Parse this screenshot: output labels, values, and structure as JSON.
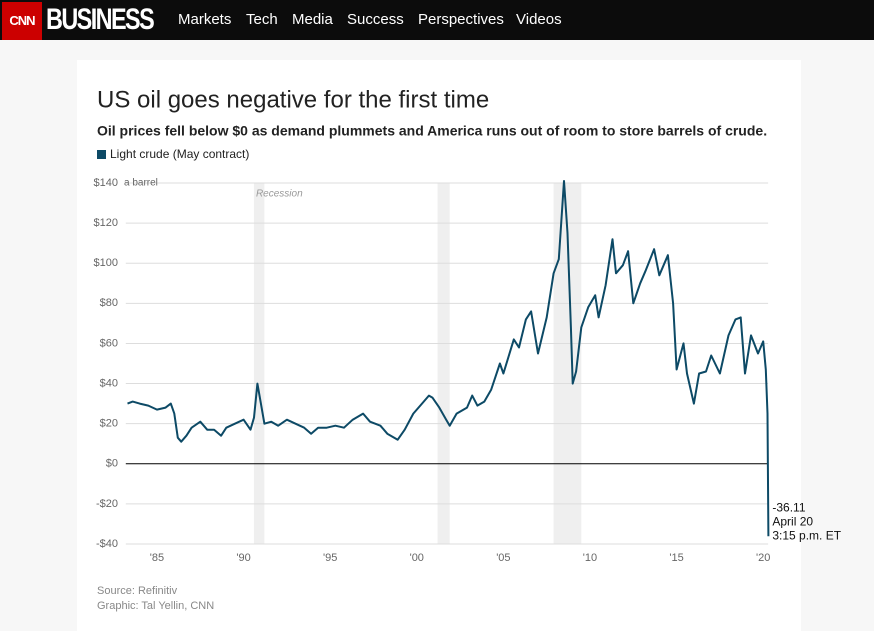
{
  "nav": {
    "logo": "CNN",
    "brand": "BUSINESS",
    "items": [
      "Markets",
      "Tech",
      "Media",
      "Success",
      "Perspectives",
      "Videos"
    ]
  },
  "chart_data": {
    "type": "line",
    "title": "US oil goes negative for the first time",
    "subtitle": "Oil prices fell below $0 as demand plummets and America runs out of room to store barrels of crude.",
    "y_unit_note": "a barrel",
    "recession_label": "Recession",
    "recessions": [
      [
        1990.6,
        1991.2
      ],
      [
        2001.2,
        2001.9
      ],
      [
        2007.9,
        2009.5
      ]
    ],
    "x": [
      1983.3,
      1983.6,
      1984.0,
      1984.5,
      1985.0,
      1985.5,
      1985.8,
      1986.0,
      1986.2,
      1986.4,
      1986.7,
      1987.0,
      1987.5,
      1987.9,
      1988.3,
      1988.7,
      1989.0,
      1989.5,
      1990.0,
      1990.4,
      1990.6,
      1990.8,
      1991.0,
      1991.2,
      1991.6,
      1992.0,
      1992.5,
      1993.0,
      1993.5,
      1993.9,
      1994.3,
      1994.8,
      1995.3,
      1995.8,
      1996.3,
      1996.9,
      1997.3,
      1997.9,
      1998.3,
      1998.9,
      1999.3,
      1999.8,
      2000.3,
      2000.7,
      2000.9,
      2001.3,
      2001.7,
      2001.9,
      2002.3,
      2002.9,
      2003.2,
      2003.5,
      2003.9,
      2004.3,
      2004.8,
      2005.0,
      2005.6,
      2005.9,
      2006.3,
      2006.6,
      2007.0,
      2007.5,
      2007.9,
      2008.2,
      2008.5,
      2008.7,
      2008.9,
      2009.0,
      2009.2,
      2009.5,
      2009.9,
      2010.3,
      2010.5,
      2010.9,
      2011.3,
      2011.5,
      2011.9,
      2012.2,
      2012.5,
      2012.9,
      2013.2,
      2013.7,
      2014.0,
      2014.5,
      2014.8,
      2015.0,
      2015.4,
      2015.6,
      2016.0,
      2016.3,
      2016.7,
      2017.0,
      2017.5,
      2018.0,
      2018.4,
      2018.7,
      2018.95,
      2019.3,
      2019.7,
      2020.0,
      2020.15,
      2020.25,
      2020.3
    ],
    "series": [
      {
        "name": "Light crude (May contract)",
        "color": "#0d4a66",
        "values": [
          30,
          31,
          30,
          29,
          27,
          28,
          30,
          25,
          13,
          11,
          14,
          18,
          21,
          17,
          17,
          14,
          18,
          20,
          22,
          17,
          23,
          40,
          30,
          20,
          21,
          19,
          22,
          20,
          18,
          15,
          18,
          18,
          19,
          18,
          22,
          25,
          21,
          19,
          15,
          12,
          17,
          25,
          30,
          34,
          33,
          28,
          22,
          19,
          25,
          28,
          34,
          29,
          31,
          37,
          50,
          45,
          62,
          58,
          72,
          76,
          55,
          73,
          95,
          102,
          141,
          115,
          68,
          40,
          46,
          68,
          78,
          84,
          73,
          89,
          112,
          95,
          99,
          106,
          80,
          90,
          96,
          107,
          94,
          104,
          80,
          47,
          60,
          45,
          30,
          45,
          46,
          54,
          45,
          64,
          72,
          73,
          45,
          64,
          55,
          61,
          47,
          25,
          -36.11
        ]
      }
    ],
    "annotation": {
      "value_label": "-36.11",
      "date": "April 20",
      "time": "3:15 p.m. ET"
    },
    "xlim": [
      1983.2,
      2020.4
    ],
    "xticks": [
      {
        "value": 1985,
        "label": "'85"
      },
      {
        "value": 1990,
        "label": "'90"
      },
      {
        "value": 1995,
        "label": "'95"
      },
      {
        "value": 2000,
        "label": "'00"
      },
      {
        "value": 2005,
        "label": "'05"
      },
      {
        "value": 2010,
        "label": "'10"
      },
      {
        "value": 2015,
        "label": "'15"
      },
      {
        "value": 2020,
        "label": "'20"
      }
    ],
    "ylim": [
      -40,
      140
    ],
    "yticks": [
      {
        "value": -40,
        "label": "-$40"
      },
      {
        "value": -20,
        "label": "-$20"
      },
      {
        "value": 0,
        "label": "$0"
      },
      {
        "value": 20,
        "label": "$20"
      },
      {
        "value": 40,
        "label": "$40"
      },
      {
        "value": 60,
        "label": "$60"
      },
      {
        "value": 80,
        "label": "$80"
      },
      {
        "value": 100,
        "label": "$100"
      },
      {
        "value": 120,
        "label": "$120"
      },
      {
        "value": 140,
        "label": "$140"
      }
    ],
    "grid": true,
    "source": "Source: Refinitiv",
    "credit": "Graphic: Tal Yellin, CNN"
  }
}
